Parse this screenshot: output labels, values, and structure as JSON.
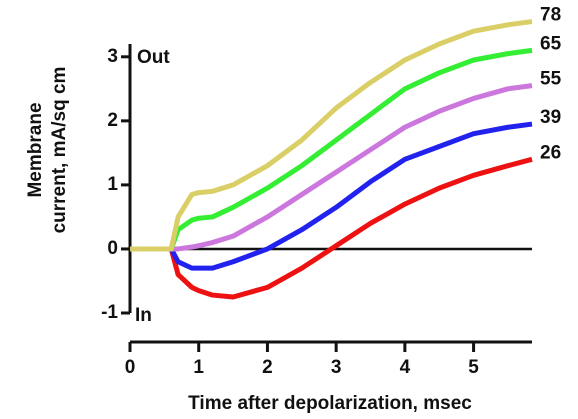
{
  "chart_data": {
    "type": "line",
    "x_label": "Time after depolarization, msec",
    "y_label": [
      "Membrane",
      "current, mA/sq cm"
    ],
    "annotations": [
      "Out",
      "In"
    ],
    "x": [
      0,
      0.6,
      0.7,
      0.9,
      1,
      1.2,
      1.5,
      2,
      2.5,
      3,
      3.5,
      4,
      4.5,
      5,
      5.5,
      5.85
    ],
    "series": [
      {
        "name": "78",
        "color": "#d9cf66",
        "values": [
          0,
          0,
          0.5,
          0.85,
          0.88,
          0.9,
          1.0,
          1.3,
          1.7,
          2.2,
          2.6,
          2.95,
          3.2,
          3.4,
          3.5,
          3.55
        ]
      },
      {
        "name": "65",
        "color": "#33ee33",
        "values": [
          0,
          0,
          0.3,
          0.45,
          0.48,
          0.5,
          0.65,
          0.95,
          1.3,
          1.7,
          2.1,
          2.5,
          2.75,
          2.95,
          3.05,
          3.1
        ]
      },
      {
        "name": "55",
        "color": "#cc77dd",
        "values": [
          0,
          0,
          0,
          0.03,
          0.05,
          0.1,
          0.2,
          0.5,
          0.85,
          1.2,
          1.55,
          1.9,
          2.15,
          2.35,
          2.5,
          2.55
        ]
      },
      {
        "name": "39",
        "color": "#2222ee",
        "values": [
          0,
          0,
          -0.2,
          -0.3,
          -0.3,
          -0.3,
          -0.2,
          0,
          0.3,
          0.65,
          1.05,
          1.4,
          1.6,
          1.8,
          1.9,
          1.95
        ]
      },
      {
        "name": "26",
        "color": "#ee1111",
        "values": [
          0,
          0,
          -0.4,
          -0.6,
          -0.65,
          -0.72,
          -0.75,
          -0.6,
          -0.3,
          0.05,
          0.4,
          0.7,
          0.95,
          1.15,
          1.3,
          1.4
        ]
      }
    ],
    "xlim": [
      0,
      5.85
    ],
    "ylim": [
      -1,
      3.2
    ],
    "xticks": [
      0,
      1,
      2,
      3,
      4,
      5
    ],
    "yticks": [
      -1,
      0,
      1,
      2,
      3
    ],
    "zero_line": true
  }
}
